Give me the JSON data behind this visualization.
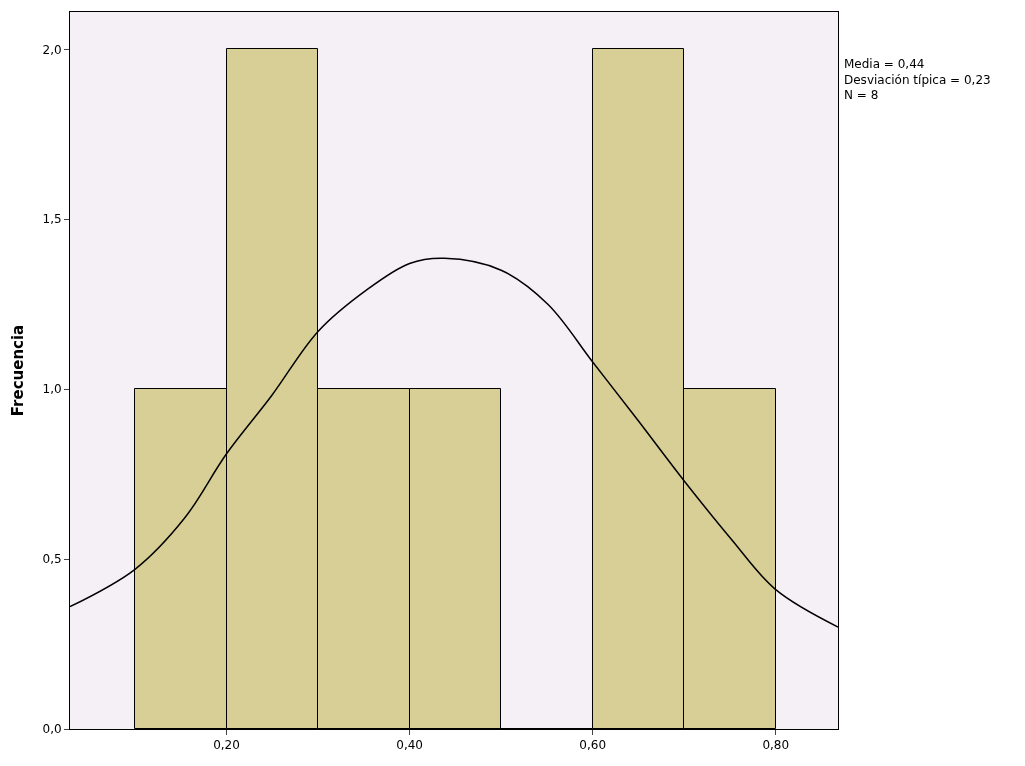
{
  "chart_data": {
    "type": "histogram",
    "ylabel": "Frecuencia",
    "bins": [
      0.1,
      0.2,
      0.3,
      0.4,
      0.5,
      0.6,
      0.7,
      0.8
    ],
    "values": [
      1,
      2,
      1,
      1,
      0,
      2,
      1
    ],
    "color": "#d8cf96",
    "series": [
      {
        "type": "line",
        "color": "#000000",
        "x": [
          0.029,
          0.1,
          0.154,
          0.2,
          0.249,
          0.3,
          0.352,
          0.4,
          0.438,
          0.5,
          0.551,
          0.6,
          0.649,
          0.7,
          0.751,
          0.8,
          0.868
        ],
        "values": [
          0.36,
          0.47,
          0.62,
          0.81,
          0.98,
          1.17,
          1.29,
          1.37,
          1.385,
          1.35,
          1.25,
          1.08,
          0.91,
          0.73,
          0.56,
          0.41,
          0.3
        ]
      }
    ],
    "xlim": [
      0.029,
      0.868
    ],
    "ylim": [
      0,
      2.11
    ],
    "xticks": [
      {
        "value": 0.2,
        "label": "0,20"
      },
      {
        "value": 0.4,
        "label": "0,40"
      },
      {
        "value": 0.6,
        "label": "0,60"
      },
      {
        "value": 0.8,
        "label": "0,80"
      }
    ],
    "yticks": [
      {
        "value": 0,
        "label": "0,0"
      },
      {
        "value": 0.5,
        "label": "0,5"
      },
      {
        "value": 1.0,
        "label": "1,0"
      },
      {
        "value": 1.5,
        "label": "1,5"
      },
      {
        "value": 2.0,
        "label": "2,0"
      }
    ],
    "annotations": [
      "Media = 0,44\nDesviación típica = 0,23\nN = 8"
    ],
    "grid": false
  }
}
